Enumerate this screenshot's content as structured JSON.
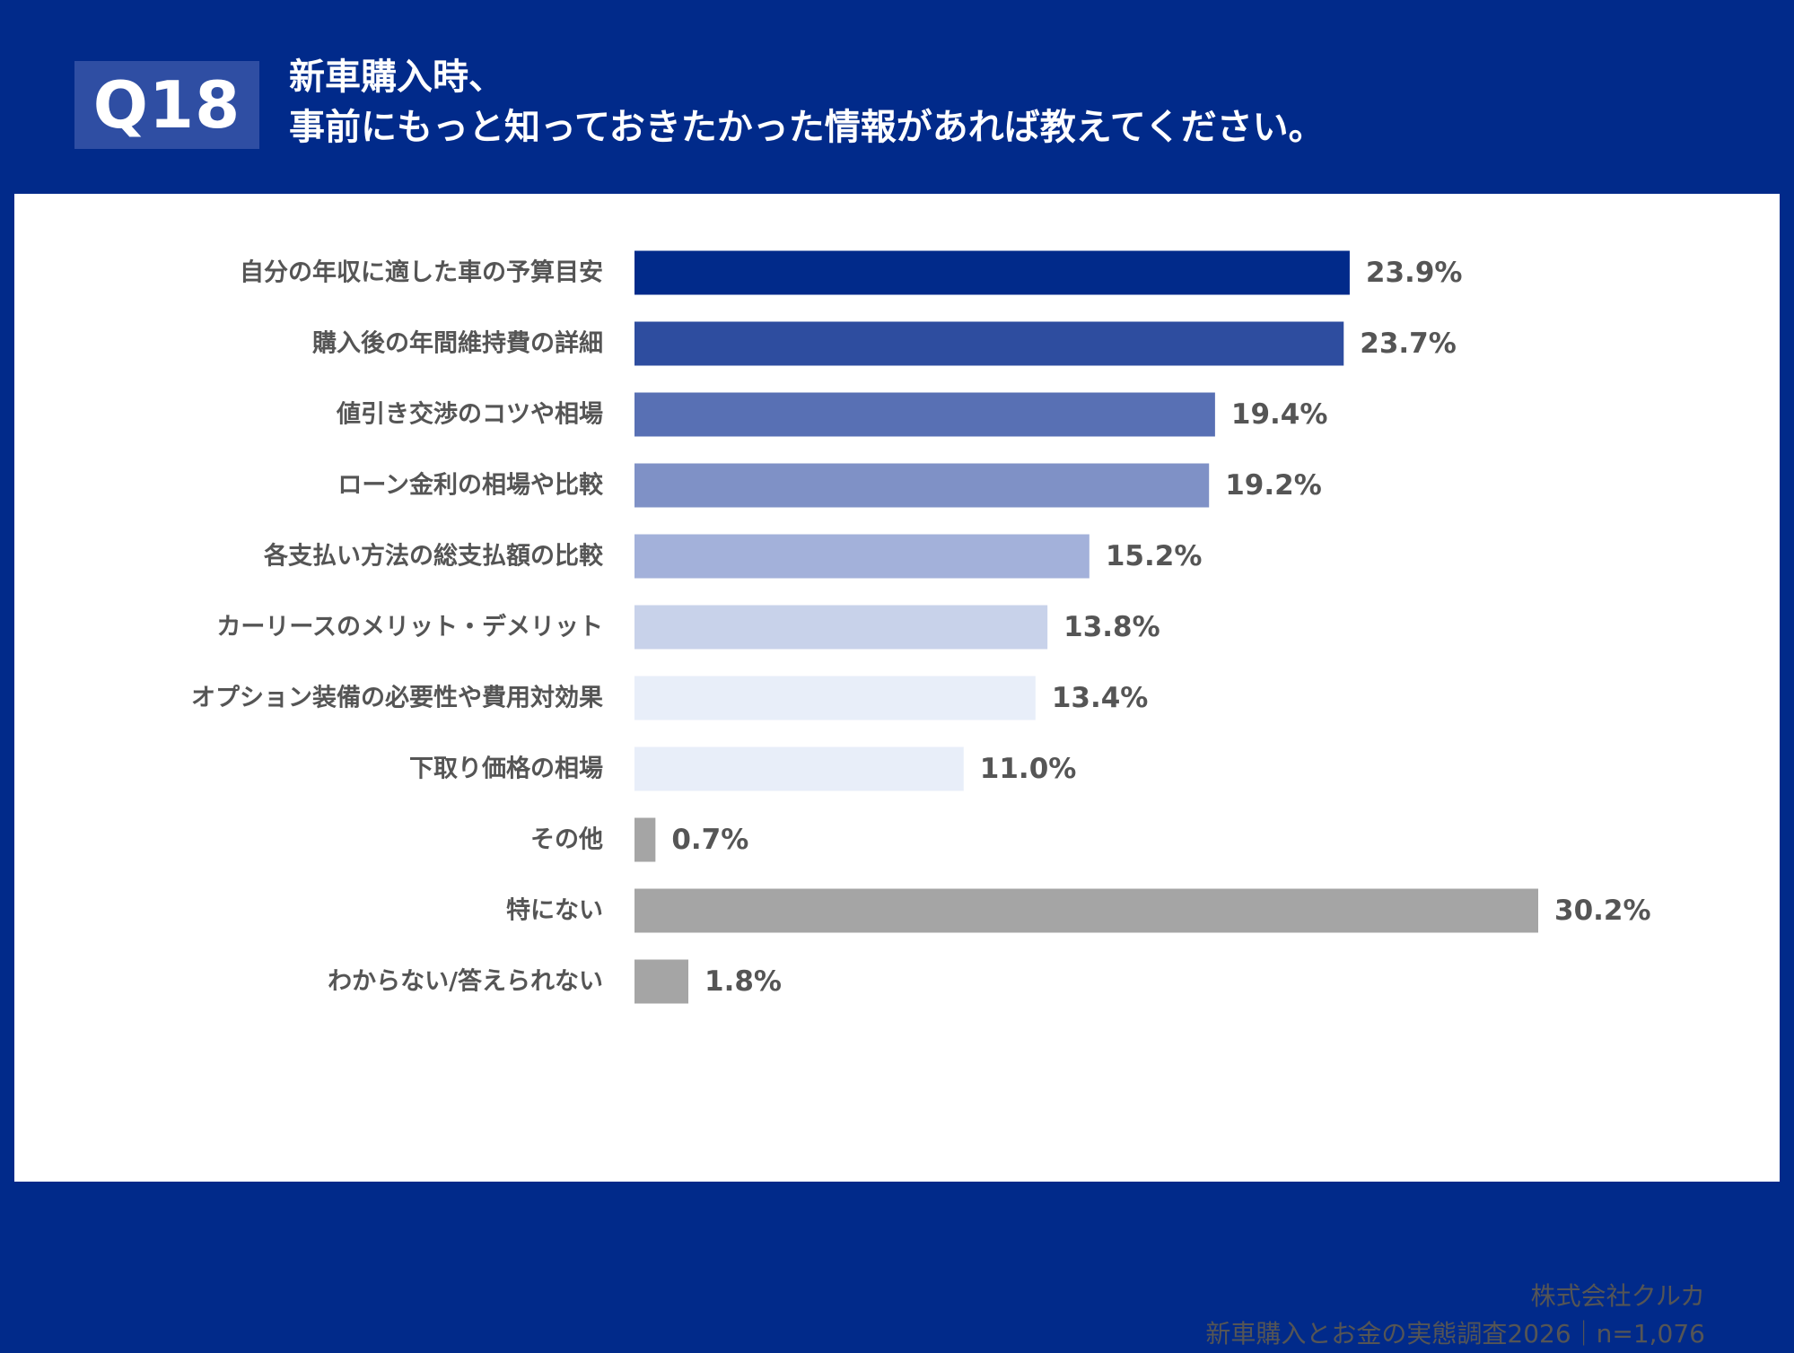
{
  "header": {
    "question_number": "Q18",
    "title_line1": "新車購入時、",
    "title_line2": "事前にもっと知っておきたかった情報があれば教えてください。"
  },
  "source": {
    "company": "株式会社クルカ",
    "survey": "新車購入とお金の実態調査2026｜n=1,076"
  },
  "colors": {
    "background": "#012a8a",
    "panel": "#ffffff",
    "label_text": "#555555",
    "value_text": "#555555"
  },
  "chart_data": {
    "type": "bar",
    "orientation": "horizontal",
    "title": "",
    "xlabel": "",
    "ylabel": "",
    "unit": "%",
    "xlim": [
      0,
      30.2
    ],
    "grid": false,
    "categories": [
      "自分の年収に適した車の予算目安",
      "購入後の年間維持費の詳細",
      "値引き交渉のコツや相場",
      "ローン金利の相場や比較",
      "各支払い方法の総支払額の比較",
      "カーリースのメリット・デメリット",
      "オプション装備の必要性や費用対効果",
      "下取り価格の相場",
      "その他",
      "特にない",
      "わからない/答えられない"
    ],
    "values": [
      23.9,
      23.7,
      19.4,
      19.2,
      15.2,
      13.8,
      13.4,
      11.0,
      0.7,
      30.2,
      1.8
    ],
    "value_labels": [
      "23.9%",
      "23.7%",
      "19.4%",
      "19.2%",
      "15.2%",
      "13.8%",
      "13.4%",
      "11.0%",
      "0.7%",
      "30.2%",
      "1.8%"
    ],
    "bar_colors": [
      "#012a8a",
      "#2e4d9f",
      "#5870b4",
      "#7f91c6",
      "#a3b1da",
      "#c8d2ea",
      "#e8eef9",
      "#e8eef9",
      "#a5a5a5",
      "#a5a5a5",
      "#a5a5a5"
    ]
  }
}
